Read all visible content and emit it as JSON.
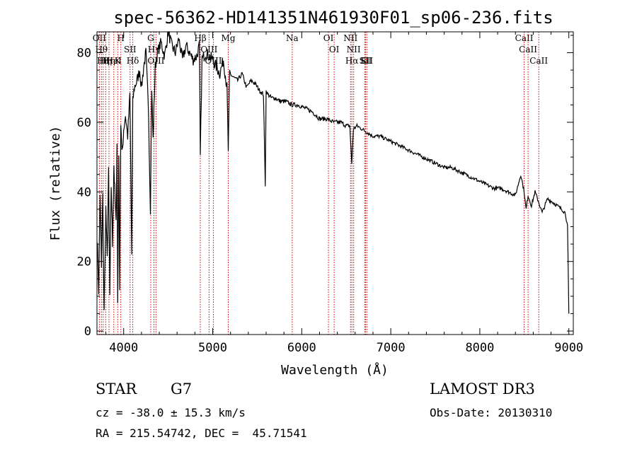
{
  "chart_data": {
    "type": "line",
    "title": "spec-56362-HD141351N461930F01_sp06-236.fits",
    "xlabel": "Wavelength (Å)",
    "ylabel": "Flux (relative)",
    "xlim": [
      3700,
      9050
    ],
    "ylim": [
      -1,
      86
    ],
    "xticks": [
      4000,
      5000,
      6000,
      7000,
      8000,
      9000
    ],
    "yticks": [
      0,
      20,
      40,
      60,
      80
    ],
    "series": [
      {
        "name": "spectrum",
        "x": [
          3700,
          3720,
          3735,
          3750,
          3765,
          3780,
          3800,
          3815,
          3830,
          3845,
          3860,
          3875,
          3890,
          3900,
          3915,
          3925,
          3933,
          3945,
          3955,
          3968,
          3980,
          4000,
          4020,
          4045,
          4070,
          4090,
          4102,
          4120,
          4150,
          4180,
          4200,
          4225,
          4250,
          4280,
          4300,
          4315,
          4330,
          4340,
          4355,
          4380,
          4420,
          4460,
          4500,
          4540,
          4580,
          4620,
          4660,
          4700,
          4740,
          4780,
          4820,
          4850,
          4861,
          4880,
          4920,
          4960,
          5000,
          5040,
          5080,
          5120,
          5160,
          5175,
          5190,
          5230,
          5280,
          5330,
          5380,
          5430,
          5480,
          5530,
          5570,
          5590,
          5600,
          5620,
          5660,
          5700,
          5760,
          5820,
          5890,
          5960,
          6040,
          6120,
          6200,
          6280,
          6360,
          6440,
          6500,
          6540,
          6562,
          6580,
          6620,
          6680,
          6740,
          6800,
          6880,
          6960,
          7040,
          7120,
          7200,
          7280,
          7360,
          7440,
          7520,
          7600,
          7680,
          7760,
          7840,
          7920,
          8000,
          8080,
          8160,
          8240,
          8320,
          8400,
          8460,
          8498,
          8520,
          8542,
          8580,
          8620,
          8662,
          8700,
          8760,
          8820,
          8870,
          8920,
          8960,
          8985,
          9000
        ],
        "y": [
          28,
          12,
          40,
          18,
          38,
          5,
          35,
          20,
          45,
          10,
          42,
          25,
          48,
          40,
          30,
          55,
          8,
          52,
          14,
          60,
          50,
          58,
          62,
          56,
          68,
          22,
          66,
          70,
          72,
          75,
          70,
          76,
          80,
          62,
          35,
          70,
          55,
          64,
          76,
          80,
          83,
          79,
          86,
          82,
          80,
          84,
          78,
          82,
          80,
          78,
          79,
          82,
          50,
          78,
          80,
          79,
          78,
          76,
          74,
          78,
          70,
          52,
          74,
          73,
          72,
          74,
          70,
          72,
          71,
          69,
          68,
          42,
          69,
          68,
          67,
          67,
          66,
          66,
          65,
          65,
          64,
          63,
          61,
          61,
          60,
          60,
          59,
          59,
          48,
          58,
          59,
          58,
          57,
          56,
          56,
          55,
          54,
          53,
          52,
          51,
          50,
          49,
          48,
          47,
          47,
          46,
          45,
          44,
          43,
          42,
          41,
          41,
          40,
          39,
          45,
          40,
          35,
          39,
          36,
          40,
          37,
          34,
          38,
          37,
          36,
          35,
          34,
          30,
          5
        ]
      }
    ],
    "line_markers": [
      {
        "wave": 3727,
        "label": "OII"
      },
      {
        "wave": 3750,
        "label": "Hθ"
      },
      {
        "wave": 3770,
        "label": "Hη"
      },
      {
        "wave": 3798,
        "label": "Hη"
      },
      {
        "wave": 3835,
        "label": "Hη"
      },
      {
        "wave": 3889,
        "label": "HeI"
      },
      {
        "wave": 3933,
        "label": "K"
      },
      {
        "wave": 3968,
        "label": "H"
      },
      {
        "wave": 4072,
        "label": "SII"
      },
      {
        "wave": 4102,
        "label": "Hδ"
      },
      {
        "wave": 4304,
        "label": "G"
      },
      {
        "wave": 4340,
        "label": "Hγ"
      },
      {
        "wave": 4363,
        "label": "OIII"
      },
      {
        "wave": 4861,
        "label": "Hβ"
      },
      {
        "wave": 4959,
        "label": "OIII"
      },
      {
        "wave": 5007,
        "label": "OIII"
      },
      {
        "wave": 5175,
        "label": "Mg"
      },
      {
        "wave": 5893,
        "label": "Na"
      },
      {
        "wave": 6300,
        "label": "OI"
      },
      {
        "wave": 6364,
        "label": "OI"
      },
      {
        "wave": 6548,
        "label": "NII"
      },
      {
        "wave": 6563,
        "label": "Hα"
      },
      {
        "wave": 6583,
        "label": "NII"
      },
      {
        "wave": 6708,
        "label": "Li"
      },
      {
        "wave": 6716,
        "label": "SII"
      },
      {
        "wave": 6731,
        "label": "SII"
      },
      {
        "wave": 8498,
        "label": "CaII"
      },
      {
        "wave": 8542,
        "label": "CaII"
      },
      {
        "wave": 8662,
        "label": "CaII"
      }
    ],
    "marker_color": "#cc0000",
    "line_color": "#000000"
  },
  "info": {
    "object_type": "STAR",
    "subclass": "G7",
    "survey": "LAMOST DR3",
    "redshift_line": "cz = -38.0 ± 15.3 km/s",
    "obs_date_line": "Obs-Date: 20130310",
    "coords_line": "RA = 215.54742, DEC =  45.71541"
  }
}
